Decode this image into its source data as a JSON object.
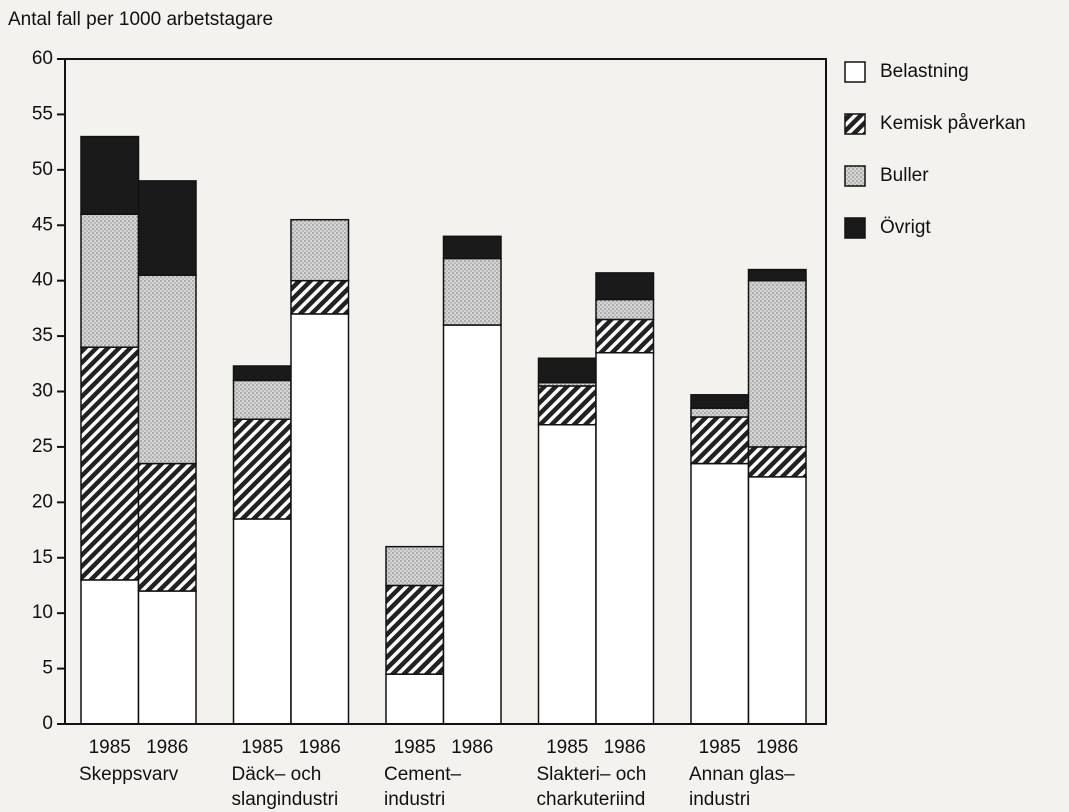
{
  "chart_data": {
    "type": "stacked_bar",
    "y_axis_label": "Antal fall per 1000 arbetstagare",
    "categories": [
      "1985",
      "1986",
      "1985",
      "1986",
      "1985",
      "1986",
      "1985",
      "1986",
      "1985",
      "1986"
    ],
    "groups": [
      [
        "Skeppsvarv"
      ],
      [
        "Däck– och",
        "slangindustri"
      ],
      [
        "Cement–",
        "industri"
      ],
      [
        "Slakteri– och",
        "charkuteriind"
      ],
      [
        "Annan glas–",
        "industri"
      ]
    ],
    "series": [
      {
        "name": "Belastning",
        "color": "#ffffff",
        "pattern": "none",
        "values": [
          13,
          12,
          18.5,
          37,
          4.5,
          36,
          27,
          33.5,
          23.5,
          22.3
        ]
      },
      {
        "name": "Kemisk påverkan",
        "color": "#222222",
        "pattern": "hatch",
        "values": [
          21,
          11.5,
          9,
          3,
          8,
          0,
          3.5,
          3,
          4.2,
          2.7
        ]
      },
      {
        "name": "Buller",
        "color": "#d4d4d4",
        "pattern": "dots",
        "values": [
          12,
          17,
          3.5,
          5.5,
          3.5,
          6,
          0.3,
          1.8,
          0.8,
          15
        ]
      },
      {
        "name": "Övrigt",
        "color": "#1a1a1a",
        "pattern": "none",
        "values": [
          7,
          8.5,
          1.3,
          0,
          0,
          2,
          2.2,
          2.4,
          1.2,
          1
        ]
      }
    ],
    "ylim": [
      0,
      60
    ],
    "yticks": [
      0,
      5,
      10,
      15,
      20,
      25,
      30,
      35,
      40,
      45,
      50,
      55,
      60
    ],
    "legend": "right"
  }
}
